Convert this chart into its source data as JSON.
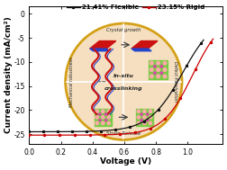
{
  "xlabel": "Voltage (V)",
  "ylabel": "Current density (mA/cm²)",
  "xlim": [
    0.0,
    1.22
  ],
  "ylim": [
    -27,
    1.5
  ],
  "xticks": [
    0.0,
    0.2,
    0.4,
    0.6,
    0.8,
    1.0
  ],
  "yticks": [
    0,
    -5,
    -10,
    -15,
    -20,
    -25
  ],
  "flexible_label": "21.41% Flexible",
  "rigid_label": "23.15% Rigid",
  "flexible_color": "#111111",
  "rigid_color": "#cc0000",
  "bg_color": "#ffffff",
  "inset_circle_color": "#d4a017",
  "inset_bg_color": "#f5dfc0",
  "flexible_jsc": -24.5,
  "rigid_jsc": -25.2,
  "flexible_voc": 1.1,
  "rigid_voc": 1.16,
  "legend_fontsize": 5.0,
  "axis_fontsize": 6.5,
  "tick_fontsize": 5.5
}
